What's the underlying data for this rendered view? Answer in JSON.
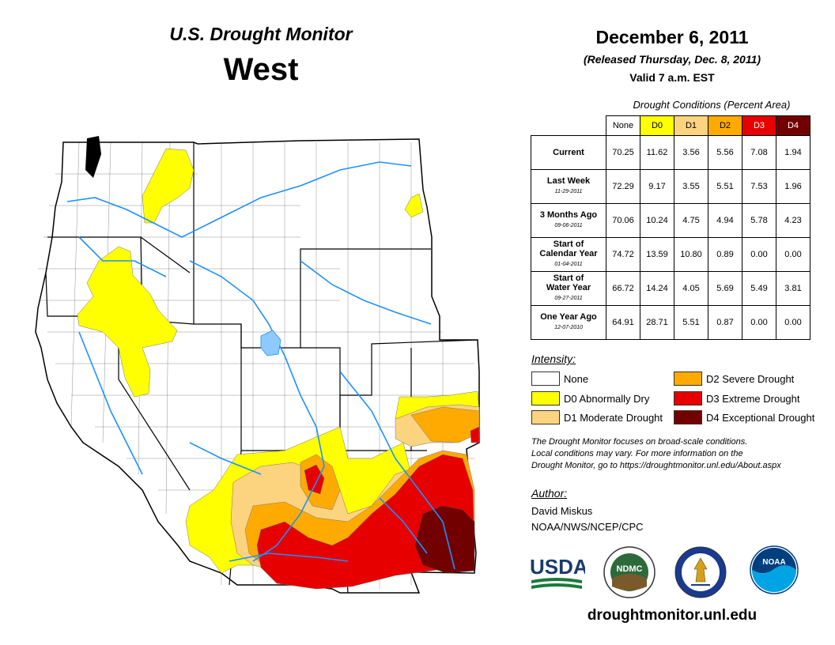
{
  "header": {
    "subtitle": "U.S. Drought Monitor",
    "region": "West",
    "date": "December 6, 2011",
    "released": "(Released Thursday, Dec. 8, 2011)",
    "valid": "Valid 7 a.m. EST"
  },
  "table": {
    "caption": "Drought Conditions (Percent Area)",
    "columns": [
      "None",
      "D0",
      "D1",
      "D2",
      "D3",
      "D4"
    ],
    "column_colors": [
      "#ffffff",
      "#ffff00",
      "#fcd37f",
      "#ffaa00",
      "#e60000",
      "#730000"
    ],
    "rows": [
      {
        "label": "Current",
        "label2": "",
        "sub": "",
        "values": [
          "70.25",
          "11.62",
          "3.56",
          "5.56",
          "7.08",
          "1.94"
        ]
      },
      {
        "label": "Last Week",
        "label2": "",
        "sub": "11-29-2011",
        "values": [
          "72.29",
          "9.17",
          "3.55",
          "5.51",
          "7.53",
          "1.96"
        ]
      },
      {
        "label": "3 Months Ago",
        "label2": "",
        "sub": "09-06-2011",
        "values": [
          "70.06",
          "10.24",
          "4.75",
          "4.94",
          "5.78",
          "4.23"
        ]
      },
      {
        "label": "Start of",
        "label2": "Calendar Year",
        "sub": "01-04-2011",
        "values": [
          "74.72",
          "13.59",
          "10.80",
          "0.89",
          "0.00",
          "0.00"
        ]
      },
      {
        "label": "Start of",
        "label2": "Water Year",
        "sub": "09-27-2011",
        "values": [
          "66.72",
          "14.24",
          "4.05",
          "5.69",
          "5.49",
          "3.81"
        ]
      },
      {
        "label": "One Year Ago",
        "label2": "",
        "sub": "12-07-2010",
        "values": [
          "64.91",
          "28.71",
          "5.51",
          "0.87",
          "0.00",
          "0.00"
        ]
      }
    ]
  },
  "legend": {
    "title": "Intensity:",
    "items": [
      {
        "label": "None",
        "color": "#ffffff"
      },
      {
        "label": "D0 Abnormally Dry",
        "color": "#ffff00"
      },
      {
        "label": "D1 Moderate Drought",
        "color": "#fcd37f"
      },
      {
        "label": "D2 Severe Drought",
        "color": "#ffaa00"
      },
      {
        "label": "D3 Extreme Drought",
        "color": "#e60000"
      },
      {
        "label": "D4 Exceptional Drought",
        "color": "#730000"
      }
    ]
  },
  "note": {
    "line1": "The Drought Monitor focuses on broad-scale conditions.",
    "line2": "Local conditions may vary. For more information on the",
    "line3": "Drought Monitor, go to https://droughtmonitor.unl.edu/About.aspx"
  },
  "author": {
    "title": "Author:",
    "name": "David Miskus",
    "org": "NOAA/NWS/NCEP/CPC"
  },
  "logos": {
    "usda": "USDA",
    "ndmc": "NDMC",
    "noaa": "NOAA"
  },
  "footer": {
    "url": "droughtmonitor.unl.edu"
  },
  "map": {
    "water_color": "#1e90ff",
    "border_color": "#000000"
  }
}
